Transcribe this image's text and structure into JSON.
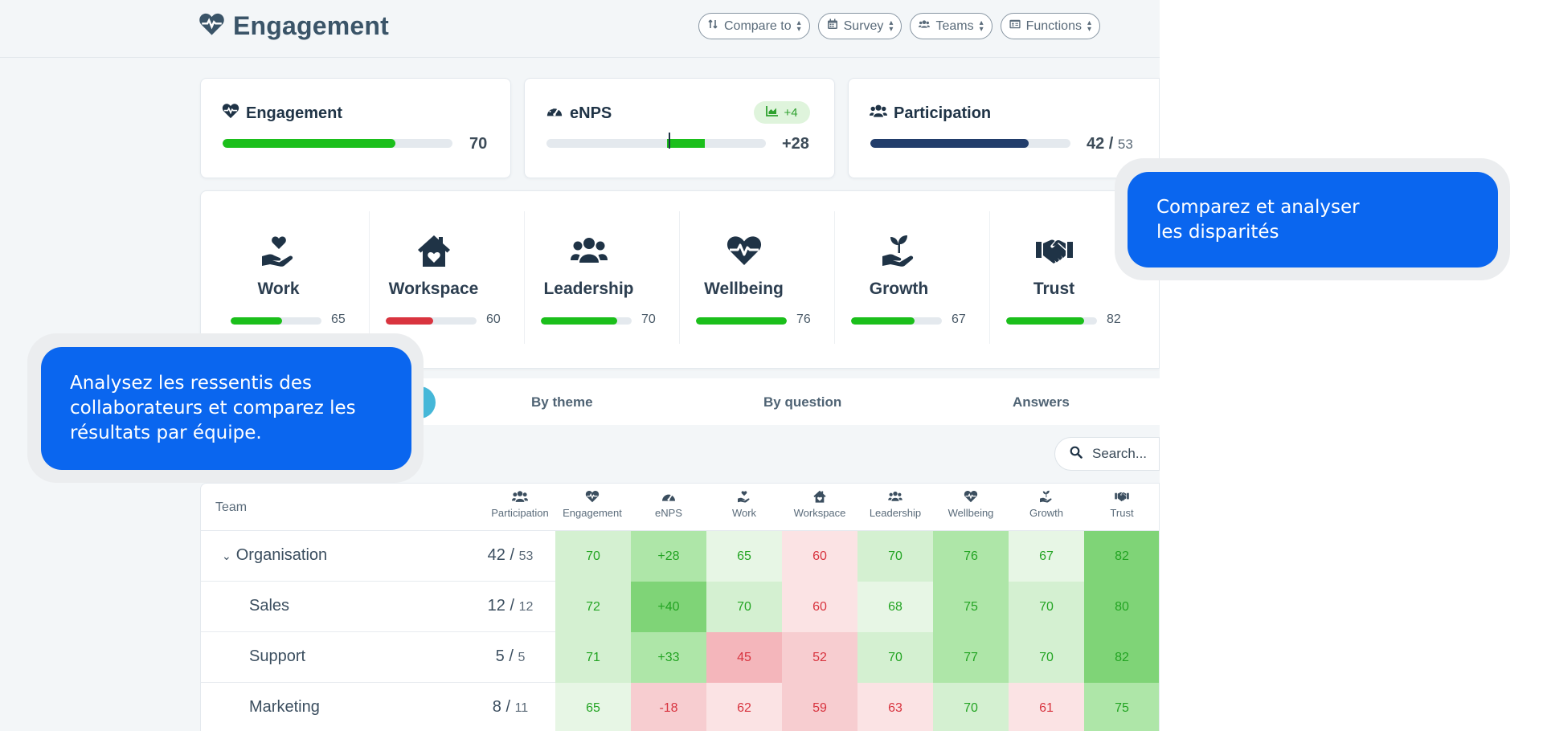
{
  "header": {
    "title": "Engagement",
    "filters": [
      {
        "label": "Compare to",
        "icon": "sort-icon"
      },
      {
        "label": "Survey",
        "icon": "calendar-icon"
      },
      {
        "label": "Teams",
        "icon": "users-icon"
      },
      {
        "label": "Functions",
        "icon": "id-card-icon"
      }
    ]
  },
  "kpis": {
    "engagement": {
      "title": "Engagement",
      "value": "70",
      "progress": 0.75,
      "color": "#1bbf1b"
    },
    "enps": {
      "title": "eNPS",
      "value": "+28",
      "delta": "+4",
      "progress_start": 0.55,
      "progress_end": 0.72,
      "color": "#1bbf1b"
    },
    "participation": {
      "title": "Participation",
      "value": "42",
      "total": "53",
      "progress": 0.79,
      "color": "#213d6b"
    }
  },
  "themes": [
    {
      "name": "Work",
      "value": "65",
      "progress": 0.57,
      "color": "#1bbf1b",
      "icon": "hand-heart-icon"
    },
    {
      "name": "Workspace",
      "value": "60",
      "progress": 0.52,
      "color": "#d9343f",
      "icon": "house-heart-icon"
    },
    {
      "name": "Leadership",
      "value": "70",
      "progress": 0.84,
      "color": "#1bbf1b",
      "icon": "users-group-icon"
    },
    {
      "name": "Wellbeing",
      "value": "76",
      "progress": 1.0,
      "color": "#1bbf1b",
      "icon": "heart-pulse-icon"
    },
    {
      "name": "Growth",
      "value": "67",
      "progress": 0.7,
      "color": "#1bbf1b",
      "icon": "hand-seedling-icon"
    },
    {
      "name": "Trust",
      "value": "82",
      "progress": 0.86,
      "color": "#1bbf1b",
      "icon": "handshake-icon"
    }
  ],
  "tabs": {
    "by_theme": "By theme",
    "by_question": "By question",
    "answers": "Answers"
  },
  "search": {
    "placeholder": "Search..."
  },
  "table": {
    "team_header": "Team",
    "columns": [
      "Participation",
      "Engagement",
      "eNPS",
      "Work",
      "Workspace",
      "Leadership",
      "Wellbeing",
      "Growth",
      "Trust"
    ],
    "column_icons": [
      "users-icon",
      "heart-pulse-icon",
      "gauge-icon",
      "hand-heart-icon",
      "house-heart-icon",
      "users-group-icon",
      "heart-pulse-icon",
      "hand-seedling-icon",
      "handshake-icon"
    ],
    "rows": [
      {
        "team": "Organisation",
        "expandable": true,
        "participation": "42",
        "participation_total": "53",
        "values": [
          "70",
          "+28",
          "65",
          "60",
          "70",
          "76",
          "67",
          "82"
        ],
        "tones": [
          "g2",
          "g3",
          "g1",
          "r1",
          "g2",
          "g3",
          "g1",
          "g4"
        ]
      },
      {
        "team": "Sales",
        "expandable": false,
        "participation": "12",
        "participation_total": "12",
        "values": [
          "72",
          "+40",
          "70",
          "60",
          "68",
          "75",
          "70",
          "80"
        ],
        "tones": [
          "g2",
          "g4",
          "g2",
          "r1",
          "g1",
          "g3",
          "g2",
          "g4"
        ]
      },
      {
        "team": "Support",
        "expandable": false,
        "participation": "5",
        "participation_total": "5",
        "values": [
          "71",
          "+33",
          "45",
          "52",
          "70",
          "77",
          "70",
          "82"
        ],
        "tones": [
          "g2",
          "g3",
          "r3",
          "r2",
          "g2",
          "g3",
          "g2",
          "g4"
        ]
      },
      {
        "team": "Marketing",
        "expandable": false,
        "participation": "8",
        "participation_total": "11",
        "values": [
          "65",
          "-18",
          "62",
          "59",
          "63",
          "70",
          "61",
          "75"
        ],
        "tones": [
          "g1",
          "r2",
          "r1",
          "r2",
          "r1",
          "g2",
          "r1",
          "g3"
        ]
      }
    ]
  },
  "callouts": {
    "left": "Analysez les ressentis des\ncollaborateurs et comparez les\nrésultats par équipe.",
    "right": "Comparez et analyser\n les disparités"
  },
  "colors": {
    "g1": "#e7f6e5",
    "g2": "#d4f0d1",
    "g3": "#aee6a8",
    "g4": "#7fd477",
    "r1": "#fbe3e4",
    "r2": "#f7cdd0",
    "r3": "#f4b6bb",
    "green_text": "#23a423",
    "red_text": "#d8343f"
  }
}
